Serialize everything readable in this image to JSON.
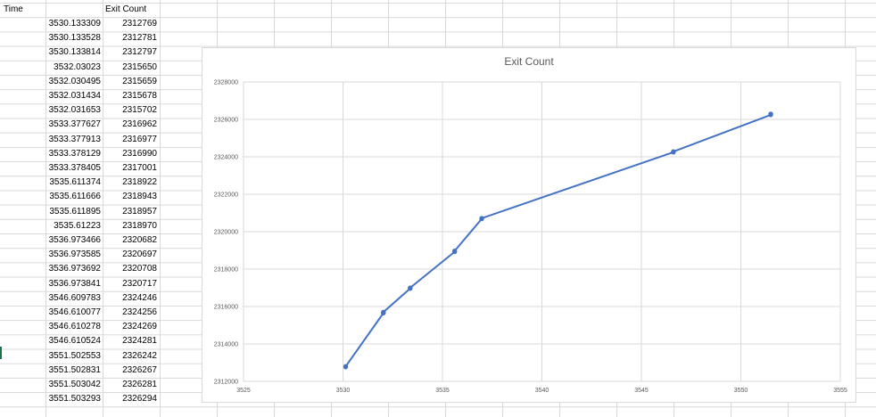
{
  "sheet": {
    "headers": [
      "Time",
      "Exit Count"
    ],
    "rows": [
      [
        "3530.133309",
        "2312769"
      ],
      [
        "3530.133528",
        "2312781"
      ],
      [
        "3530.133814",
        "2312797"
      ],
      [
        "3532.03023",
        "2315650"
      ],
      [
        "3532.030495",
        "2315659"
      ],
      [
        "3532.031434",
        "2315678"
      ],
      [
        "3532.031653",
        "2315702"
      ],
      [
        "3533.377627",
        "2316962"
      ],
      [
        "3533.377913",
        "2316977"
      ],
      [
        "3533.378129",
        "2316990"
      ],
      [
        "3533.378405",
        "2317001"
      ],
      [
        "3535.611374",
        "2318922"
      ],
      [
        "3535.611666",
        "2318943"
      ],
      [
        "3535.611895",
        "2318957"
      ],
      [
        "3535.61223",
        "2318970"
      ],
      [
        "3536.973466",
        "2320682"
      ],
      [
        "3536.973585",
        "2320697"
      ],
      [
        "3536.973692",
        "2320708"
      ],
      [
        "3536.973841",
        "2320717"
      ],
      [
        "3546.609783",
        "2324246"
      ],
      [
        "3546.610077",
        "2324256"
      ],
      [
        "3546.610278",
        "2324269"
      ],
      [
        "3546.610524",
        "2324281"
      ],
      [
        "3551.502553",
        "2326242"
      ],
      [
        "3551.502831",
        "2326267"
      ],
      [
        "3551.503042",
        "2326281"
      ],
      [
        "3551.503293",
        "2326294"
      ]
    ]
  },
  "chart_data": {
    "type": "line",
    "title": "Exit Count",
    "xlabel": "",
    "ylabel": "",
    "xlim": [
      3525,
      3555
    ],
    "ylim": [
      2312000,
      2328000
    ],
    "xticks": [
      3525,
      3530,
      3535,
      3540,
      3545,
      3550,
      3555
    ],
    "yticks": [
      2312000,
      2314000,
      2316000,
      2318000,
      2320000,
      2322000,
      2324000,
      2326000,
      2328000
    ],
    "grid": true,
    "legend": "none",
    "series": [
      {
        "color": "#4472c4",
        "x": [
          3530.133309,
          3530.133528,
          3530.133814,
          3532.03023,
          3532.030495,
          3532.031434,
          3532.031653,
          3533.377627,
          3533.377913,
          3533.378129,
          3533.378405,
          3535.611374,
          3535.611666,
          3535.611895,
          3535.61223,
          3536.973466,
          3536.973585,
          3536.973692,
          3536.973841,
          3546.609783,
          3546.610077,
          3546.610278,
          3546.610524,
          3551.502553,
          3551.502831,
          3551.503042,
          3551.503293
        ],
        "y": [
          2312769,
          2312781,
          2312797,
          2315650,
          2315659,
          2315678,
          2315702,
          2316962,
          2316977,
          2316990,
          2317001,
          2318922,
          2318943,
          2318957,
          2318970,
          2320682,
          2320697,
          2320708,
          2320717,
          2324246,
          2324256,
          2324269,
          2324281,
          2326242,
          2326267,
          2326281,
          2326294
        ]
      }
    ]
  }
}
